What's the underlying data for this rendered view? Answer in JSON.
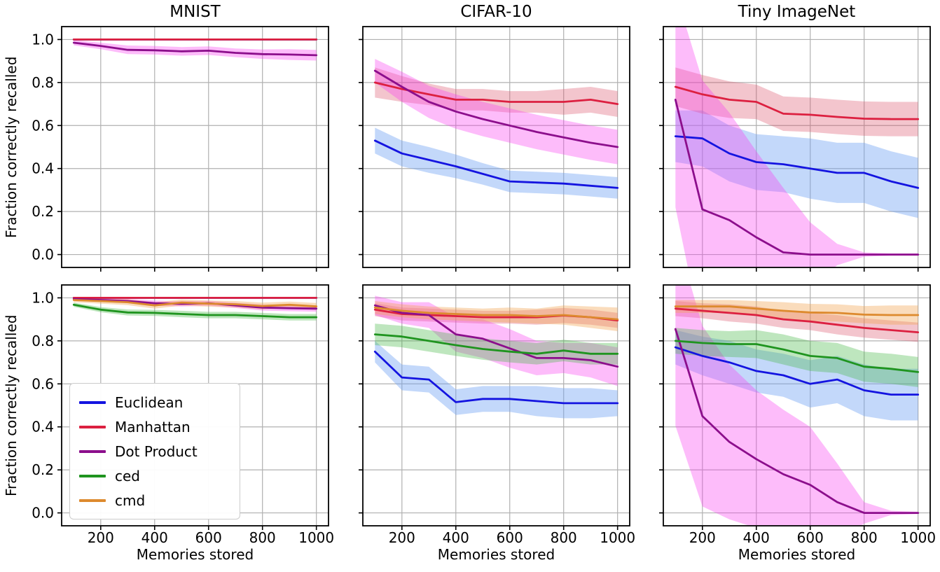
{
  "figure": {
    "background": "#ffffff"
  },
  "chart_data": {
    "type": "line",
    "x": [
      100,
      200,
      300,
      400,
      500,
      600,
      700,
      800,
      900,
      1000
    ],
    "x_ticks": [
      200,
      400,
      600,
      800,
      1000
    ],
    "y_ticks": [
      0.0,
      0.2,
      0.4,
      0.6,
      0.8,
      1.0
    ],
    "xlim": [
      55,
      1045
    ],
    "ylim": [
      -0.06,
      1.06
    ],
    "xlabel": "Memories stored",
    "ylabel": "Fraction correctly recalled",
    "grid": true,
    "grid_color": "#b0b0b0",
    "legend": {
      "position": "lower-left subplot",
      "entries": [
        {
          "label": "Euclidean",
          "color": "#1414e0"
        },
        {
          "label": "Manhattan",
          "color": "#dc2040"
        },
        {
          "label": "Dot Product",
          "color": "#8c0e8c"
        },
        {
          "label": "ced",
          "color": "#1f941f"
        },
        {
          "label": "cmd",
          "color": "#dd8a2e"
        }
      ]
    },
    "series_styles": {
      "Euclidean": {
        "color": "#1414e0",
        "band_color": "#6fa3f2",
        "band_opacity": 0.42
      },
      "Manhattan": {
        "color": "#dc2040",
        "band_color": "#dc5068",
        "band_opacity": 0.33
      },
      "Dot Product": {
        "color": "#8c0e8c",
        "band_color": "#f83ef0",
        "band_opacity": 0.35
      },
      "ced": {
        "color": "#1f941f",
        "band_color": "#46b846",
        "band_opacity": 0.35
      },
      "cmd": {
        "color": "#dd8a2e",
        "band_color": "#f2a24e",
        "band_opacity": 0.38
      }
    },
    "subplots": [
      {
        "row": 0,
        "col": 0,
        "title": "MNIST",
        "series": [
          {
            "name": "Euclidean",
            "values": [
              1.0,
              1.0,
              1.0,
              1.0,
              1.0,
              1.0,
              1.0,
              1.0,
              1.0,
              1.0
            ],
            "band": [
              0.002,
              0.002,
              0.002,
              0.002,
              0.002,
              0.002,
              0.002,
              0.002,
              0.002,
              0.002
            ]
          },
          {
            "name": "Manhattan",
            "values": [
              1.0,
              1.0,
              1.0,
              1.0,
              1.0,
              1.0,
              1.0,
              1.0,
              1.0,
              1.0
            ],
            "band": [
              0.004,
              0.004,
              0.004,
              0.004,
              0.004,
              0.004,
              0.004,
              0.004,
              0.004,
              0.004
            ]
          },
          {
            "name": "Dot Product",
            "values": [
              0.985,
              0.97,
              0.952,
              0.95,
              0.945,
              0.948,
              0.938,
              0.932,
              0.93,
              0.927
            ],
            "band": [
              0.012,
              0.015,
              0.02,
              0.02,
              0.02,
              0.02,
              0.02,
              0.022,
              0.025,
              0.025
            ]
          }
        ]
      },
      {
        "row": 0,
        "col": 1,
        "title": "CIFAR-10",
        "series": [
          {
            "name": "Euclidean",
            "values": [
              0.53,
              0.47,
              0.44,
              0.41,
              0.375,
              0.34,
              0.335,
              0.33,
              0.32,
              0.31
            ],
            "band": [
              0.06,
              0.06,
              0.06,
              0.055,
              0.05,
              0.05,
              0.05,
              0.05,
              0.05,
              0.05
            ]
          },
          {
            "name": "Manhattan",
            "values": [
              0.8,
              0.77,
              0.745,
              0.72,
              0.72,
              0.71,
              0.71,
              0.71,
              0.72,
              0.7
            ],
            "band": [
              0.07,
              0.06,
              0.05,
              0.05,
              0.05,
              0.05,
              0.05,
              0.06,
              0.06,
              0.06
            ]
          },
          {
            "name": "Dot Product",
            "values": [
              0.855,
              0.78,
              0.71,
              0.665,
              0.63,
              0.6,
              0.57,
              0.545,
              0.52,
              0.5
            ],
            "band": [
              0.055,
              0.07,
              0.075,
              0.08,
              0.08,
              0.08,
              0.08,
              0.08,
              0.08,
              0.08
            ]
          }
        ]
      },
      {
        "row": 0,
        "col": 2,
        "title": "Tiny ImageNet",
        "series": [
          {
            "name": "Euclidean",
            "values": [
              0.55,
              0.54,
              0.47,
              0.43,
              0.42,
              0.4,
              0.38,
              0.38,
              0.34,
              0.31
            ],
            "band": [
              0.12,
              0.13,
              0.13,
              0.13,
              0.13,
              0.14,
              0.14,
              0.14,
              0.14,
              0.14
            ]
          },
          {
            "name": "Manhattan",
            "values": [
              0.78,
              0.745,
              0.72,
              0.71,
              0.655,
              0.65,
              0.64,
              0.632,
              0.63,
              0.63
            ],
            "band": [
              0.09,
              0.09,
              0.085,
              0.08,
              0.08,
              0.08,
              0.08,
              0.08,
              0.08,
              0.08
            ]
          },
          {
            "name": "Dot Product",
            "values": [
              0.72,
              0.21,
              0.16,
              0.08,
              0.01,
              0.0,
              0.0,
              0.0,
              0.0,
              0.0
            ],
            "band": [
              0.5,
              0.6,
              0.5,
              0.4,
              0.3,
              0.15,
              0.05,
              0.01,
              0.005,
              0.005
            ]
          }
        ]
      },
      {
        "row": 1,
        "col": 0,
        "title": "",
        "series": [
          {
            "name": "Euclidean",
            "values": [
              1.0,
              1.0,
              1.0,
              1.0,
              1.0,
              1.0,
              1.0,
              1.0,
              1.0,
              1.0
            ],
            "band": [
              0.002,
              0.002,
              0.002,
              0.002,
              0.002,
              0.002,
              0.002,
              0.002,
              0.002,
              0.002
            ]
          },
          {
            "name": "Manhattan",
            "values": [
              1.0,
              1.0,
              1.0,
              1.0,
              1.0,
              1.0,
              1.0,
              1.0,
              1.0,
              1.0
            ],
            "band": [
              0.004,
              0.004,
              0.004,
              0.004,
              0.004,
              0.004,
              0.004,
              0.004,
              0.004,
              0.004
            ]
          },
          {
            "name": "Dot Product",
            "values": [
              0.995,
              0.99,
              0.985,
              0.975,
              0.972,
              0.975,
              0.965,
              0.955,
              0.952,
              0.95
            ],
            "band": [
              0.008,
              0.008,
              0.01,
              0.012,
              0.012,
              0.012,
              0.012,
              0.014,
              0.014,
              0.014
            ]
          },
          {
            "name": "ced",
            "values": [
              0.968,
              0.945,
              0.932,
              0.93,
              0.925,
              0.92,
              0.92,
              0.915,
              0.91,
              0.91
            ],
            "band": [
              0.01,
              0.012,
              0.014,
              0.014,
              0.015,
              0.015,
              0.015,
              0.015,
              0.015,
              0.015
            ]
          },
          {
            "name": "cmd",
            "values": [
              0.99,
              0.985,
              0.98,
              0.965,
              0.978,
              0.973,
              0.97,
              0.962,
              0.968,
              0.96
            ],
            "band": [
              0.01,
              0.012,
              0.014,
              0.015,
              0.014,
              0.014,
              0.015,
              0.016,
              0.015,
              0.016
            ]
          }
        ]
      },
      {
        "row": 1,
        "col": 1,
        "title": "",
        "series": [
          {
            "name": "Euclidean",
            "values": [
              0.75,
              0.63,
              0.62,
              0.515,
              0.53,
              0.53,
              0.52,
              0.51,
              0.51,
              0.51
            ],
            "band": [
              0.05,
              0.06,
              0.06,
              0.06,
              0.06,
              0.06,
              0.07,
              0.07,
              0.07,
              0.06
            ]
          },
          {
            "name": "Manhattan",
            "values": [
              0.945,
              0.925,
              0.92,
              0.915,
              0.91,
              0.91,
              0.91,
              0.918,
              0.91,
              0.895
            ],
            "band": [
              0.03,
              0.03,
              0.03,
              0.03,
              0.03,
              0.03,
              0.035,
              0.035,
              0.035,
              0.035
            ]
          },
          {
            "name": "Dot Product",
            "values": [
              0.965,
              0.93,
              0.92,
              0.83,
              0.81,
              0.765,
              0.72,
              0.72,
              0.71,
              0.68
            ],
            "band": [
              0.045,
              0.05,
              0.06,
              0.08,
              0.09,
              0.09,
              0.08,
              0.07,
              0.08,
              0.09
            ]
          },
          {
            "name": "ced",
            "values": [
              0.83,
              0.82,
              0.8,
              0.78,
              0.762,
              0.75,
              0.74,
              0.755,
              0.74,
              0.74
            ],
            "band": [
              0.05,
              0.05,
              0.05,
              0.05,
              0.05,
              0.05,
              0.05,
              0.05,
              0.05,
              0.05
            ]
          },
          {
            "name": "cmd",
            "values": [
              0.955,
              0.94,
              0.93,
              0.925,
              0.92,
              0.92,
              0.915,
              0.92,
              0.91,
              0.9
            ],
            "band": [
              0.03,
              0.03,
              0.03,
              0.03,
              0.03,
              0.035,
              0.035,
              0.045,
              0.05,
              0.055
            ]
          }
        ]
      },
      {
        "row": 1,
        "col": 2,
        "title": "",
        "series": [
          {
            "name": "Euclidean",
            "values": [
              0.77,
              0.73,
              0.7,
              0.66,
              0.64,
              0.6,
              0.62,
              0.57,
              0.55,
              0.55
            ],
            "band": [
              0.08,
              0.09,
              0.1,
              0.1,
              0.1,
              0.11,
              0.11,
              0.12,
              0.12,
              0.12
            ]
          },
          {
            "name": "Manhattan",
            "values": [
              0.95,
              0.94,
              0.93,
              0.92,
              0.9,
              0.89,
              0.875,
              0.86,
              0.85,
              0.84
            ],
            "band": [
              0.035,
              0.035,
              0.04,
              0.04,
              0.04,
              0.04,
              0.045,
              0.045,
              0.045,
              0.045
            ]
          },
          {
            "name": "Dot Product",
            "values": [
              0.855,
              0.45,
              0.33,
              0.25,
              0.18,
              0.13,
              0.05,
              0.0,
              0.0,
              0.0
            ],
            "band": [
              0.45,
              0.42,
              0.36,
              0.32,
              0.3,
              0.27,
              0.18,
              0.05,
              0.01,
              0.005
            ]
          },
          {
            "name": "ced",
            "values": [
              0.8,
              0.79,
              0.785,
              0.785,
              0.76,
              0.73,
              0.72,
              0.68,
              0.67,
              0.655
            ],
            "band": [
              0.06,
              0.06,
              0.06,
              0.065,
              0.07,
              0.07,
              0.07,
              0.07,
              0.07,
              0.07
            ]
          },
          {
            "name": "cmd",
            "values": [
              0.96,
              0.96,
              0.96,
              0.95,
              0.94,
              0.932,
              0.93,
              0.922,
              0.92,
              0.92
            ],
            "band": [
              0.03,
              0.03,
              0.03,
              0.035,
              0.04,
              0.04,
              0.04,
              0.04,
              0.045,
              0.045
            ]
          }
        ]
      }
    ]
  }
}
